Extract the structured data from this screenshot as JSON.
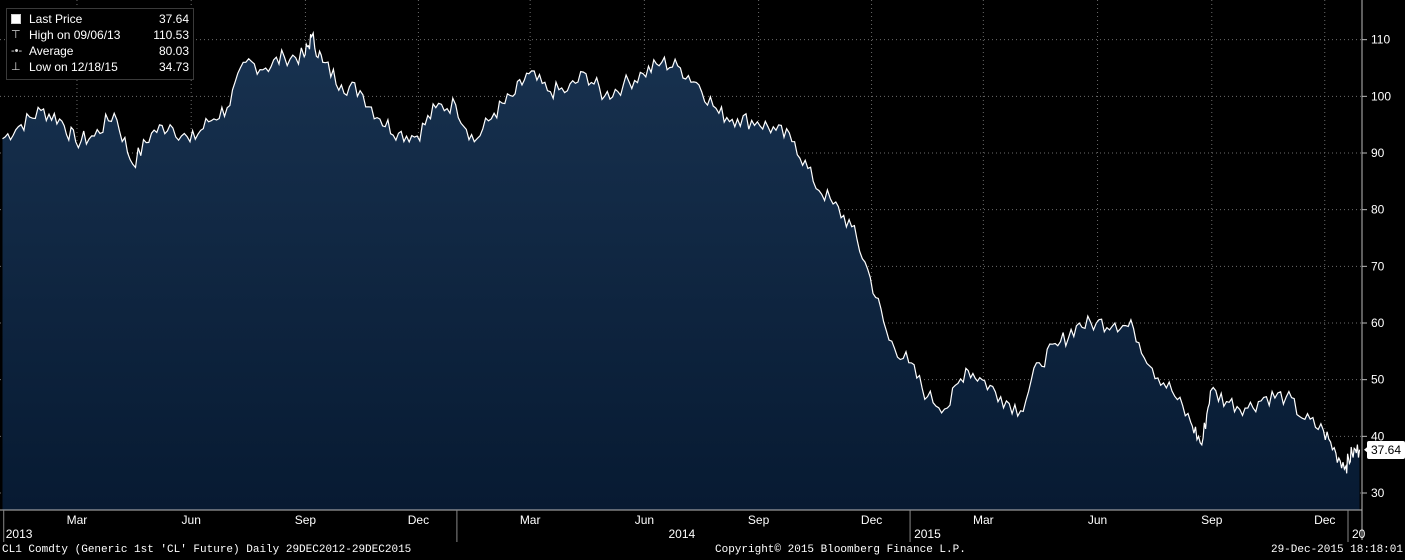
{
  "chart_data": {
    "type": "area",
    "title": "",
    "xlabel": "",
    "ylabel": "",
    "ylim": [
      27,
      117
    ],
    "yticks": [
      30,
      40,
      50,
      60,
      70,
      80,
      90,
      100,
      110
    ],
    "month_ticks": [
      "Mar",
      "Jun",
      "Sep",
      "Dec",
      "Mar",
      "Jun",
      "Sep",
      "Dec",
      "Mar",
      "Jun",
      "Sep",
      "Dec"
    ],
    "year_labels": [
      "2013",
      "2014",
      "2015",
      "20"
    ],
    "series": [
      {
        "x": [
          "2012-12-31",
          "2013-01-15",
          "2013-01-31",
          "2013-02-15",
          "2013-02-28",
          "2013-03-15",
          "2013-03-31",
          "2013-04-15",
          "2013-04-30",
          "2013-05-15",
          "2013-05-31",
          "2013-06-15",
          "2013-06-30",
          "2013-07-15",
          "2013-07-31",
          "2013-08-15",
          "2013-08-31",
          "2013-09-06",
          "2013-09-15",
          "2013-09-30",
          "2013-10-15",
          "2013-10-31",
          "2013-11-15",
          "2013-11-30",
          "2013-12-15",
          "2013-12-31",
          "2014-01-15",
          "2014-01-31",
          "2014-02-15",
          "2014-02-28",
          "2014-03-15",
          "2014-03-31",
          "2014-04-15",
          "2014-04-30",
          "2014-05-15",
          "2014-05-31",
          "2014-06-15",
          "2014-06-30",
          "2014-07-15",
          "2014-07-31",
          "2014-08-15",
          "2014-08-31",
          "2014-09-15",
          "2014-09-30",
          "2014-10-15",
          "2014-10-31",
          "2014-11-15",
          "2014-11-30",
          "2014-12-15",
          "2014-12-31",
          "2015-01-15",
          "2015-01-31",
          "2015-02-15",
          "2015-02-28",
          "2015-03-15",
          "2015-03-31",
          "2015-04-15",
          "2015-04-30",
          "2015-05-15",
          "2015-05-31",
          "2015-06-15",
          "2015-06-30",
          "2015-07-15",
          "2015-07-31",
          "2015-08-15",
          "2015-08-24",
          "2015-08-31",
          "2015-09-15",
          "2015-09-30",
          "2015-10-15",
          "2015-10-31",
          "2015-11-15",
          "2015-11-30",
          "2015-12-10",
          "2015-12-18",
          "2015-12-23",
          "2015-12-29"
        ],
        "values": [
          92.5,
          95,
          97.5,
          96,
          92,
          93,
          97,
          88,
          93.5,
          95,
          92,
          95.5,
          98,
          106,
          105,
          107,
          107,
          110.53,
          106,
          102,
          101,
          96,
          93.5,
          93,
          98,
          98.5,
          92,
          97,
          100,
          104,
          101,
          101,
          104,
          100,
          102,
          104,
          106,
          105,
          102,
          97,
          96,
          95.5,
          94,
          92,
          85,
          81,
          77,
          68,
          57,
          53,
          47,
          45,
          52,
          50,
          47,
          44.5,
          53,
          56,
          59.5,
          60,
          60,
          59,
          52,
          48,
          42.5,
          38.5,
          48,
          46,
          45,
          47,
          47,
          43,
          41,
          37,
          34.73,
          37,
          37.64
        ]
      }
    ],
    "colors": {
      "line": "#ffffff",
      "fill_top": "#183250",
      "fill_bottom": "#071a32",
      "grid": "#6b6b6b",
      "background": "#000000"
    }
  },
  "legend": {
    "items": [
      {
        "label": "Last Price",
        "value": "37.64"
      },
      {
        "label": "High on 09/06/13",
        "value": "110.53"
      },
      {
        "label": "Average",
        "value": "80.03"
      },
      {
        "label": "Low on 12/18/15",
        "value": "34.73"
      }
    ]
  },
  "last_price_tag": "37.64",
  "footer": {
    "left": "CL1 Comdty (Generic 1st 'CL' Future)  Daily 29DEC2012-29DEC2015",
    "center": "Copyright© 2015 Bloomberg Finance L.P.",
    "right": "29-Dec-2015 18:18:01"
  }
}
